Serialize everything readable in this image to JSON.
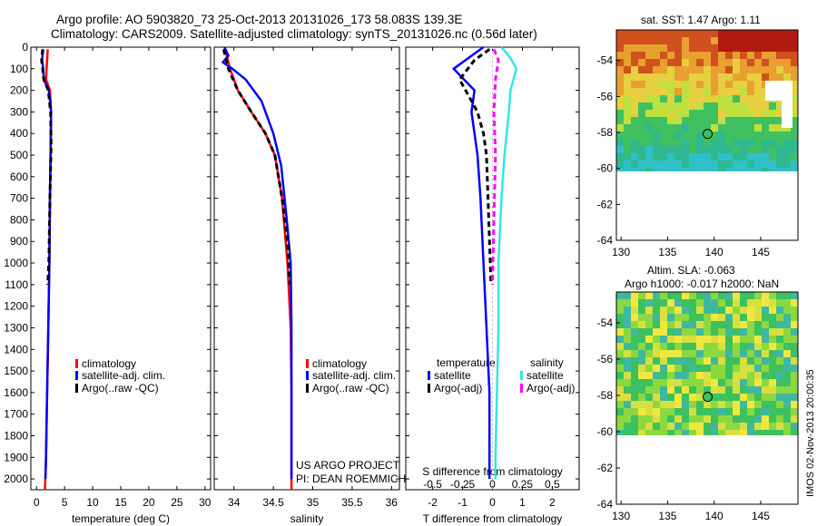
{
  "header": {
    "line1": "Argo profile: AO 5903820_73 25-Oct-2013 20131026_173 58.083S 139.3E",
    "line2": "Climatology: CARS2009. Satellite-adjusted climatology: synTS_20131026.nc (0.56d later)"
  },
  "footer": {
    "stamp": "IMOS 02-Nov-2013 20:00:35"
  },
  "legend_profiles": [
    {
      "label": "climatology",
      "color": "#ff0000"
    },
    {
      "label": "satellite-adj. clim.",
      "color": "#0000ff"
    },
    {
      "label": "Argo(..raw -QC)",
      "color": "#000000"
    }
  ],
  "legend_diff": {
    "temperature_title": "temperature",
    "salinity_title": "salinity",
    "t_items": [
      {
        "label": "satellite",
        "color": "#0000ff"
      },
      {
        "label": "Argo(-adj)",
        "color": "#000000"
      }
    ],
    "s_items": [
      {
        "label": "satellite",
        "color": "#33e6e6"
      },
      {
        "label": "Argo(-adj)",
        "color": "#ff00ff"
      }
    ]
  },
  "credits": {
    "line1": "US ARGO PROJECT",
    "line2": "PI: DEAN ROEMMICH"
  },
  "map_sst": {
    "title": "sat. SST: 1.47 Argo: 1.11",
    "xticks": [
      "130",
      "135",
      "140",
      "145"
    ],
    "yticks": [
      "-54",
      "-56",
      "-58",
      "-60",
      "-62",
      "-64"
    ]
  },
  "map_sla": {
    "title1": "Altim. SLA: -0.063",
    "title2": "Argo h1000: -0.017 h2000: NaN",
    "xticks": [
      "130",
      "135",
      "140",
      "145"
    ],
    "yticks": [
      "-54",
      "-56",
      "-58",
      "-60",
      "-62",
      "-64"
    ]
  },
  "chart_data": [
    {
      "type": "line",
      "xlabel": "temperature (deg C)",
      "ylabel": "",
      "xlim": [
        -1,
        31
      ],
      "ylim": [
        2050,
        0
      ],
      "xticks": [
        0,
        5,
        10,
        15,
        20,
        25,
        30
      ],
      "yticks": [
        0,
        100,
        200,
        300,
        400,
        500,
        600,
        700,
        800,
        900,
        1000,
        1100,
        1200,
        1300,
        1400,
        1500,
        1600,
        1700,
        1800,
        1900,
        2000
      ],
      "series": [
        {
          "name": "climatology",
          "color": "#ff0000",
          "x": [
            2.0,
            1.9,
            1.8,
            1.7,
            2.4,
            2.6,
            2.5,
            2.4,
            2.3,
            2.1,
            1.9,
            1.7,
            1.5
          ],
          "y": [
            10,
            60,
            100,
            150,
            200,
            300,
            500,
            700,
            1000,
            1300,
            1600,
            1900,
            2050
          ]
        },
        {
          "name": "satellite-adj. clim.",
          "color": "#0000ff",
          "x": [
            1.2,
            1.0,
            1.2,
            1.3,
            2.2,
            2.6,
            2.5,
            2.4,
            2.3,
            2.1,
            1.9,
            1.7,
            1.6
          ],
          "y": [
            10,
            60,
            100,
            150,
            200,
            300,
            500,
            700,
            1000,
            1300,
            1600,
            1900,
            2000
          ]
        },
        {
          "name": "Argo(..raw -QC)",
          "color": "#000000",
          "x": [
            1.1,
            0.9,
            1.1,
            1.3,
            2.1,
            2.5,
            2.6,
            2.4,
            2.2,
            2.0
          ],
          "y": [
            10,
            60,
            100,
            150,
            200,
            300,
            450,
            700,
            1000,
            1100
          ]
        }
      ]
    },
    {
      "type": "line",
      "xlabel": "salinity",
      "ylabel": "",
      "xlim": [
        33.75,
        36.1
      ],
      "ylim": [
        2050,
        0
      ],
      "xticks": [
        34,
        34.5,
        35,
        35.5,
        36
      ],
      "xticklabels": [
        "34",
        "34.5",
        "35",
        "35.5",
        "36"
      ],
      "series": [
        {
          "name": "climatology",
          "color": "#ff0000",
          "x": [
            33.88,
            33.95,
            34.05,
            34.22,
            34.4,
            34.52,
            34.61,
            34.68,
            34.72,
            34.73,
            34.73
          ],
          "y": [
            0,
            100,
            200,
            300,
            400,
            500,
            700,
            1000,
            1300,
            1600,
            2050
          ]
        },
        {
          "name": "satellite-adj. clim.",
          "color": "#0000ff",
          "x": [
            33.88,
            33.93,
            33.86,
            33.98,
            34.15,
            34.35,
            34.5,
            34.6,
            34.67,
            34.72,
            34.73,
            34.73,
            34.73
          ],
          "y": [
            0,
            40,
            70,
            100,
            150,
            250,
            400,
            550,
            800,
            1000,
            1300,
            1600,
            2000
          ]
        },
        {
          "name": "Argo(..raw -QC)",
          "color": "#000000",
          "x": [
            33.87,
            33.93,
            34.05,
            34.22,
            34.4,
            34.52,
            34.61,
            34.68,
            34.71
          ],
          "y": [
            10,
            100,
            200,
            300,
            400,
            500,
            700,
            900,
            1100
          ]
        }
      ]
    },
    {
      "type": "line",
      "xlabel": "T difference from climatology",
      "ylabel": "",
      "xlim": [
        -2.9,
        2.9
      ],
      "ylim": [
        2050,
        0
      ],
      "xticks": [
        -2,
        -1,
        0,
        1,
        2
      ],
      "secondary_xlabel": "S difference from climatology",
      "secondary_xticks": [
        -0.5,
        -0.25,
        0,
        0.25,
        0.5
      ],
      "secondary_xticklabels": [
        "-0.5",
        "-0.25",
        "0",
        "0.25",
        "0.5"
      ],
      "series": [
        {
          "name": "temperature satellite",
          "color": "#0000ff",
          "x": [
            -0.3,
            -0.8,
            -1.3,
            -0.6,
            -0.7,
            -0.5,
            -0.4,
            -0.3,
            -0.2,
            -0.1,
            -0.1,
            -0.1,
            -0.1
          ],
          "y": [
            0,
            50,
            100,
            200,
            300,
            500,
            700,
            1000,
            1300,
            1600,
            1800,
            1900,
            2000
          ]
        },
        {
          "name": "temperature Argo(-adj)",
          "color": "#000000",
          "x": [
            -0.1,
            -0.6,
            -1.1,
            -0.9,
            -0.5,
            -0.3,
            -0.2,
            -0.15,
            -0.05
          ],
          "y": [
            10,
            60,
            150,
            200,
            300,
            400,
            500,
            700,
            1100
          ]
        },
        {
          "name": "salinity satellite",
          "color": "#33e6e6",
          "x": [
            0.3,
            0.6,
            0.8,
            0.6,
            0.55,
            0.4,
            0.3,
            0.2,
            0.2,
            0.15,
            0.1,
            0.1
          ],
          "y": [
            0,
            50,
            100,
            200,
            300,
            500,
            700,
            1000,
            1300,
            1600,
            1900,
            2000
          ]
        },
        {
          "name": "salinity Argo(-adj)",
          "color": "#ff00ff",
          "x": [
            0.05,
            0.2,
            0.1,
            0.05,
            0.1,
            0.05,
            0.0
          ],
          "y": [
            10,
            60,
            150,
            300,
            500,
            800,
            1100
          ]
        }
      ]
    },
    {
      "type": "heatmap",
      "title": "sat. SST: 1.47 Argo: 1.11",
      "xlim": [
        129.5,
        149
      ],
      "ylim": [
        -64,
        -52.3
      ],
      "xticks": [
        130,
        135,
        140,
        145
      ],
      "yticks": [
        -54,
        -56,
        -58,
        -60,
        -62,
        -64
      ],
      "float_position": {
        "lon": 139.3,
        "lat": -58.083
      }
    },
    {
      "type": "heatmap",
      "title": "Altim. SLA: -0.063",
      "subtitle": "Argo h1000: -0.017 h2000: NaN",
      "xlim": [
        129.5,
        149
      ],
      "ylim": [
        -64,
        -52.3
      ],
      "xticks": [
        130,
        135,
        140,
        145
      ],
      "yticks": [
        -54,
        -56,
        -58,
        -60,
        -62,
        -64
      ],
      "float_position": {
        "lon": 139.3,
        "lat": -58.083
      }
    }
  ]
}
